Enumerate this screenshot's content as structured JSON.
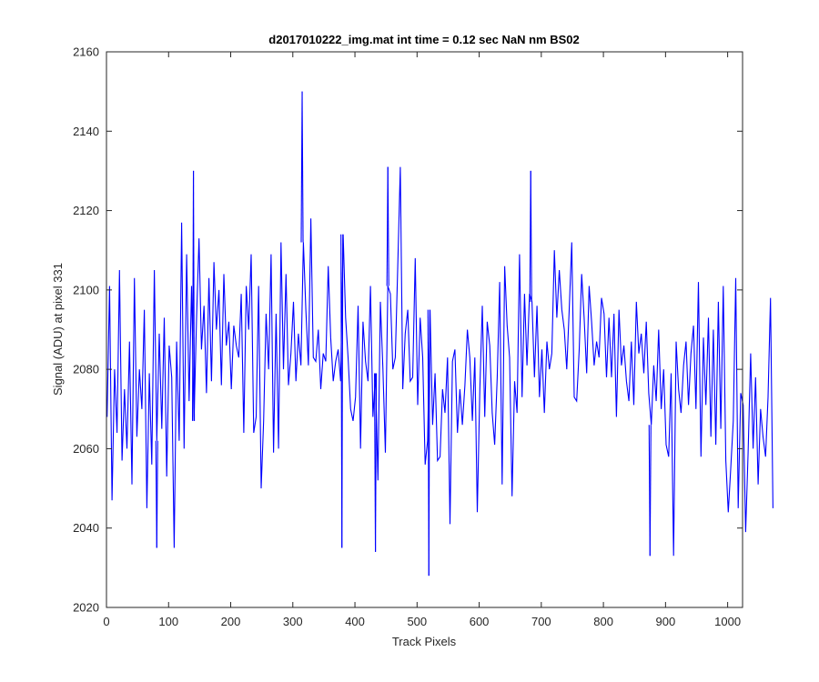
{
  "chart_data": {
    "type": "line",
    "title": "d2017010222_img.mat int time = 0.12 sec  NaN nm BS02",
    "xlabel": "Track Pixels",
    "ylabel": "Signal (ADU) at pixel 331",
    "xlim": [
      0,
      1024
    ],
    "ylim": [
      2020,
      2160
    ],
    "xticks": [
      0,
      100,
      200,
      300,
      400,
      500,
      600,
      700,
      800,
      900,
      1000
    ],
    "yticks": [
      2020,
      2040,
      2060,
      2080,
      2100,
      2120,
      2140,
      2160
    ],
    "grid": false,
    "legend": "none",
    "colors": {
      "series": "#0000ff",
      "axes": "#262626",
      "background": "#ffffff"
    },
    "series": [
      {
        "x_start": 1,
        "x_step": 4,
        "values": [
          2068,
          2101,
          2047,
          2080,
          2064,
          2105,
          2057,
          2075,
          2060,
          2087,
          2051,
          2103,
          2063,
          2080,
          2070,
          2095,
          2045,
          2079,
          2056,
          2105,
          2062,
          2089,
          2065,
          2093,
          2053,
          2086,
          2078,
          2035,
          2087,
          2062,
          2117,
          2060,
          2109,
          2072,
          2101,
          2067,
          2093,
          2113,
          2085,
          2096,
          2074,
          2103,
          2077,
          2107,
          2090,
          2100,
          2076,
          2104,
          2086,
          2092,
          2075,
          2091,
          2086,
          2083,
          2099,
          2064,
          2101,
          2090,
          2109,
          2064,
          2068,
          2101,
          2050,
          2067,
          2094,
          2080,
          2109,
          2059,
          2094,
          2060,
          2112,
          2080,
          2104,
          2076,
          2084,
          2097,
          2077,
          2089,
          2081,
          2112,
          2095,
          2081,
          2118,
          2083,
          2082,
          2090,
          2075,
          2084,
          2082,
          2106,
          2088,
          2077,
          2082,
          2085,
          2077,
          2114,
          2093,
          2083,
          2070,
          2067,
          2073,
          2096,
          2060,
          2092,
          2082,
          2077,
          2101,
          2068,
          2079,
          2052,
          2097,
          2080,
          2059,
          2101,
          2099,
          2080,
          2083,
          2106,
          2131,
          2075,
          2089,
          2095,
          2077,
          2078,
          2108,
          2071,
          2093,
          2083,
          2056,
          2062,
          2095,
          2066,
          2079,
          2057,
          2058,
          2075,
          2069,
          2083,
          2041,
          2082,
          2085,
          2064,
          2075,
          2066,
          2076,
          2090,
          2083,
          2067,
          2083,
          2044,
          2075,
          2096,
          2068,
          2092,
          2086,
          2069,
          2061,
          2078,
          2102,
          2051,
          2106,
          2091,
          2083,
          2048,
          2077,
          2069,
          2109,
          2073,
          2099,
          2081,
          2099,
          2097,
          2078,
          2096,
          2073,
          2085,
          2069,
          2087,
          2080,
          2084,
          2110,
          2093,
          2105,
          2095,
          2090,
          2080,
          2095,
          2112,
          2073,
          2072,
          2085,
          2104,
          2093,
          2079,
          2101,
          2092,
          2081,
          2087,
          2083,
          2098,
          2094,
          2078,
          2093,
          2078,
          2094,
          2068,
          2095,
          2081,
          2086,
          2077,
          2072,
          2087,
          2071,
          2097,
          2084,
          2089,
          2079,
          2092,
          2074,
          2066,
          2081,
          2072,
          2090,
          2070,
          2080,
          2061,
          2058,
          2079,
          2033,
          2087,
          2075,
          2069,
          2081,
          2087,
          2071,
          2084,
          2091,
          2070,
          2102,
          2058,
          2088,
          2071,
          2093,
          2063,
          2090,
          2061,
          2097,
          2065,
          2101,
          2057,
          2044,
          2055,
          2067,
          2103,
          2045,
          2074,
          2071,
          2039,
          2059,
          2084,
          2060,
          2078,
          2051,
          2070,
          2063,
          2058,
          2073,
          2098,
          2045
        ]
      }
    ]
  },
  "series_overlay_points": [
    {
      "x": 315,
      "y": 2150
    },
    {
      "x": 453,
      "y": 2131
    },
    {
      "x": 140,
      "y": 2130
    },
    {
      "x": 683,
      "y": 2130
    },
    {
      "x": 519,
      "y": 2028
    },
    {
      "x": 875,
      "y": 2033
    },
    {
      "x": 81,
      "y": 2035
    },
    {
      "x": 433,
      "y": 2034
    },
    {
      "x": 379,
      "y": 2035
    }
  ]
}
